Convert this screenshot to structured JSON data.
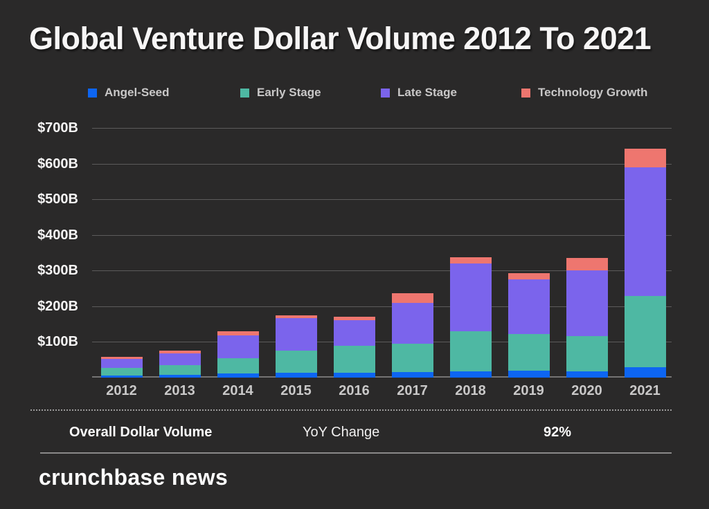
{
  "title": "Global Venture Dollar Volume 2012 To 2021",
  "chart_data": {
    "type": "bar",
    "stacked": true,
    "categories": [
      "2012",
      "2013",
      "2014",
      "2015",
      "2016",
      "2017",
      "2018",
      "2019",
      "2020",
      "2021"
    ],
    "series": [
      {
        "name": "Angel-Seed",
        "color": "#0d65f2",
        "values": [
          5,
          7,
          11,
          13,
          13,
          16,
          18,
          19,
          17,
          29
        ]
      },
      {
        "name": "Early Stage",
        "color": "#4eb8a3",
        "values": [
          22,
          28,
          44,
          63,
          76,
          79,
          111,
          103,
          99,
          199
        ]
      },
      {
        "name": "Late Stage",
        "color": "#7b64ec",
        "values": [
          25,
          32,
          63,
          90,
          72,
          115,
          191,
          153,
          184,
          361
        ]
      },
      {
        "name": "Technology Growth",
        "color": "#ee766f",
        "values": [
          6,
          8,
          11,
          9,
          10,
          27,
          18,
          18,
          35,
          53
        ]
      }
    ],
    "totals_billions": [
      58,
      75,
      129,
      175,
      171,
      237,
      338,
      293,
      335,
      642
    ],
    "units": "USD billions",
    "yticks": [
      {
        "value": 100,
        "label": "$100B"
      },
      {
        "value": 200,
        "label": "$200B"
      },
      {
        "value": 300,
        "label": "$300B"
      },
      {
        "value": 400,
        "label": "$400B"
      },
      {
        "value": 500,
        "label": "$500B"
      },
      {
        "value": 600,
        "label": "$600B"
      },
      {
        "value": 700,
        "label": "$700B"
      }
    ],
    "ylim": [
      0,
      700
    ],
    "grid": true,
    "legend_position": "top"
  },
  "summary_row": {
    "overall_label": "Overall Dollar Volume",
    "yoy_label": "YoY Change",
    "yoy_value": "92%"
  },
  "brand": "crunchbase news",
  "colors": {
    "background": "#2a2929",
    "gridline": "#5c5b5b",
    "axis_line": "#757474",
    "title_text": "#f7f6f6",
    "tick_text": "#c9c8c8"
  }
}
